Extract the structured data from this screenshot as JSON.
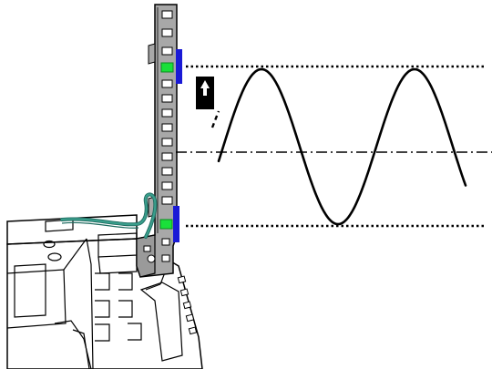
{
  "colors": {
    "background": "#ffffff",
    "rail": "#a8a8a8",
    "rail_outline": "#000000",
    "slot": "#ffffff",
    "indicator_led": "#19e03a",
    "limit_marker": "#1a1ad6",
    "cable": "#3a9e8c",
    "cable_dark": "#1f6b60",
    "arrow_tag": "#000000",
    "arrow_glyph": "#ffffff",
    "wave": "#000000",
    "reference_lines": "#000000"
  },
  "icons": {
    "direction_tag": "up-arrow-icon",
    "led": "led-indicator-icon"
  },
  "diagram": {
    "upper_limit_line": "dotted",
    "lower_limit_line": "dotted",
    "center_line": "dash-dot",
    "indicators": [
      "upper-limit-sensor",
      "lower-limit-sensor"
    ],
    "wave_shape": "sine"
  }
}
